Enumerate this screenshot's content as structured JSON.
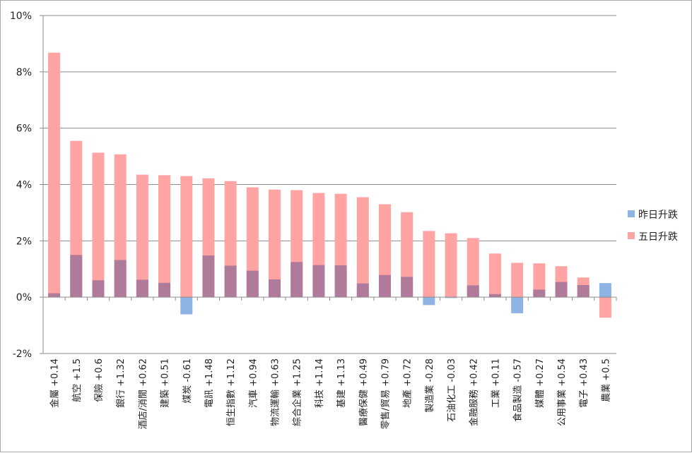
{
  "chart_data": {
    "type": "bar",
    "stacking": "overlaid",
    "categories": [
      "金屬 +0.14",
      "航空 +1.5",
      "保險 +0.6",
      "銀行 +1.32",
      "酒店/消閒 +0.62",
      "建築 +0.51",
      "煤炭 -0.61",
      "電訊 +1.48",
      "恒生指數 +1.12",
      "汽車 +0.94",
      "物流運輸 +0.63",
      "綜合企業 +1.25",
      "科技 +1.14",
      "基建 +1.13",
      "醫療保健 +0.49",
      "零售/貿易 +0.79",
      "地產 +0.72",
      "製造業 -0.28",
      "石油化工 -0.03",
      "金融服務 +0.42",
      "工業 +0.11",
      "食品製造 -0.57",
      "媒體 +0.27",
      "公用事業 +0.54",
      "電子 +0.43",
      "農業 +0.5"
    ],
    "series": [
      {
        "name": "昨日升跌",
        "color": "#8db4e2",
        "values": [
          0.14,
          1.5,
          0.6,
          1.32,
          0.62,
          0.51,
          -0.61,
          1.48,
          1.12,
          0.94,
          0.63,
          1.25,
          1.14,
          1.13,
          0.49,
          0.79,
          0.72,
          -0.28,
          -0.03,
          0.42,
          0.11,
          -0.57,
          0.27,
          0.54,
          0.43,
          0.5
        ]
      },
      {
        "name": "五日升跌",
        "color": "#ffa3a3",
        "values": [
          8.68,
          5.55,
          5.13,
          5.07,
          4.35,
          4.33,
          4.3,
          4.22,
          4.12,
          3.9,
          3.82,
          3.8,
          3.7,
          3.67,
          3.55,
          3.3,
          3.02,
          2.35,
          2.27,
          2.1,
          1.55,
          1.22,
          1.2,
          1.1,
          0.7,
          -0.73
        ]
      }
    ],
    "overlap_color": "#b07a9a",
    "yticks": [
      "-2%",
      "0%",
      "2%",
      "4%",
      "6%",
      "8%",
      "10%"
    ],
    "ylim": [
      -2,
      10
    ],
    "grid": true,
    "legend_position": "right",
    "title": "",
    "xlabel": "",
    "ylabel": ""
  }
}
